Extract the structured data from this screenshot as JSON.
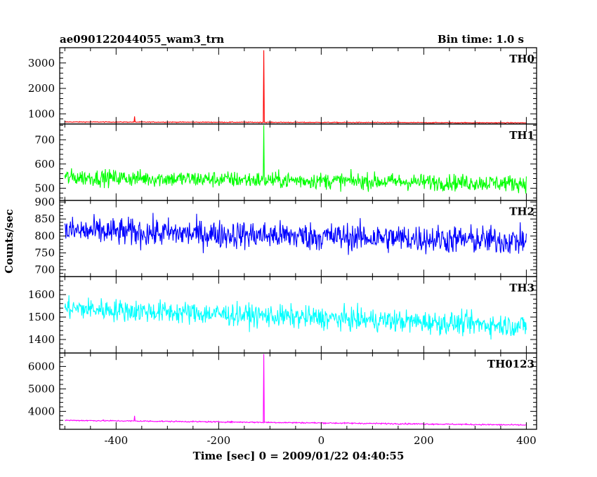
{
  "header": {
    "title": "ae090122044055_wam3_trn",
    "bin_time": "Bin time: 1.0 s"
  },
  "chart_data": {
    "type": "line",
    "x_label": "Time [sec] 0 = 2009/01/22 04:40:55",
    "y_label": "Counts/sec",
    "x_range": [
      -510,
      420
    ],
    "x_ticks": [
      -400,
      -200,
      0,
      200,
      400
    ],
    "x_data_range": [
      -500,
      400
    ],
    "spike_time": -112,
    "panels": [
      {
        "name": "TH0",
        "color": "#ff0000",
        "y_range": [
          600,
          3600
        ],
        "y_ticks": [
          1000,
          2000,
          3000
        ],
        "baseline_start": 680,
        "baseline_end": 650,
        "noise": 28,
        "spike_peak": 3500,
        "bumps": [
          {
            "t": -364,
            "value": 900
          }
        ]
      },
      {
        "name": "TH1",
        "color": "#00ff00",
        "y_range": [
          450,
          765
        ],
        "y_ticks": [
          500,
          600,
          700
        ],
        "baseline_start": 545,
        "baseline_end": 520,
        "noise": 65,
        "spike_peak": 760,
        "bumps": []
      },
      {
        "name": "TH2",
        "color": "#0000ff",
        "y_range": [
          680,
          905
        ],
        "y_ticks": [
          700,
          750,
          800,
          850,
          900
        ],
        "baseline_start": 815,
        "baseline_end": 785,
        "noise": 80,
        "spike_peak": null,
        "bumps": []
      },
      {
        "name": "TH3",
        "color": "#00ffff",
        "y_range": [
          1340,
          1680
        ],
        "y_ticks": [
          1400,
          1500,
          1600
        ],
        "baseline_start": 1540,
        "baseline_end": 1460,
        "noise": 95,
        "spike_peak": null,
        "bumps": []
      },
      {
        "name": "TH0123",
        "color": "#ff00ff",
        "y_range": [
          3200,
          6600
        ],
        "y_ticks": [
          4000,
          5000,
          6000
        ],
        "baseline_start": 3600,
        "baseline_end": 3390,
        "noise": 55,
        "spike_peak": 6550,
        "bumps": [
          {
            "t": -364,
            "value": 3800
          }
        ]
      }
    ]
  }
}
